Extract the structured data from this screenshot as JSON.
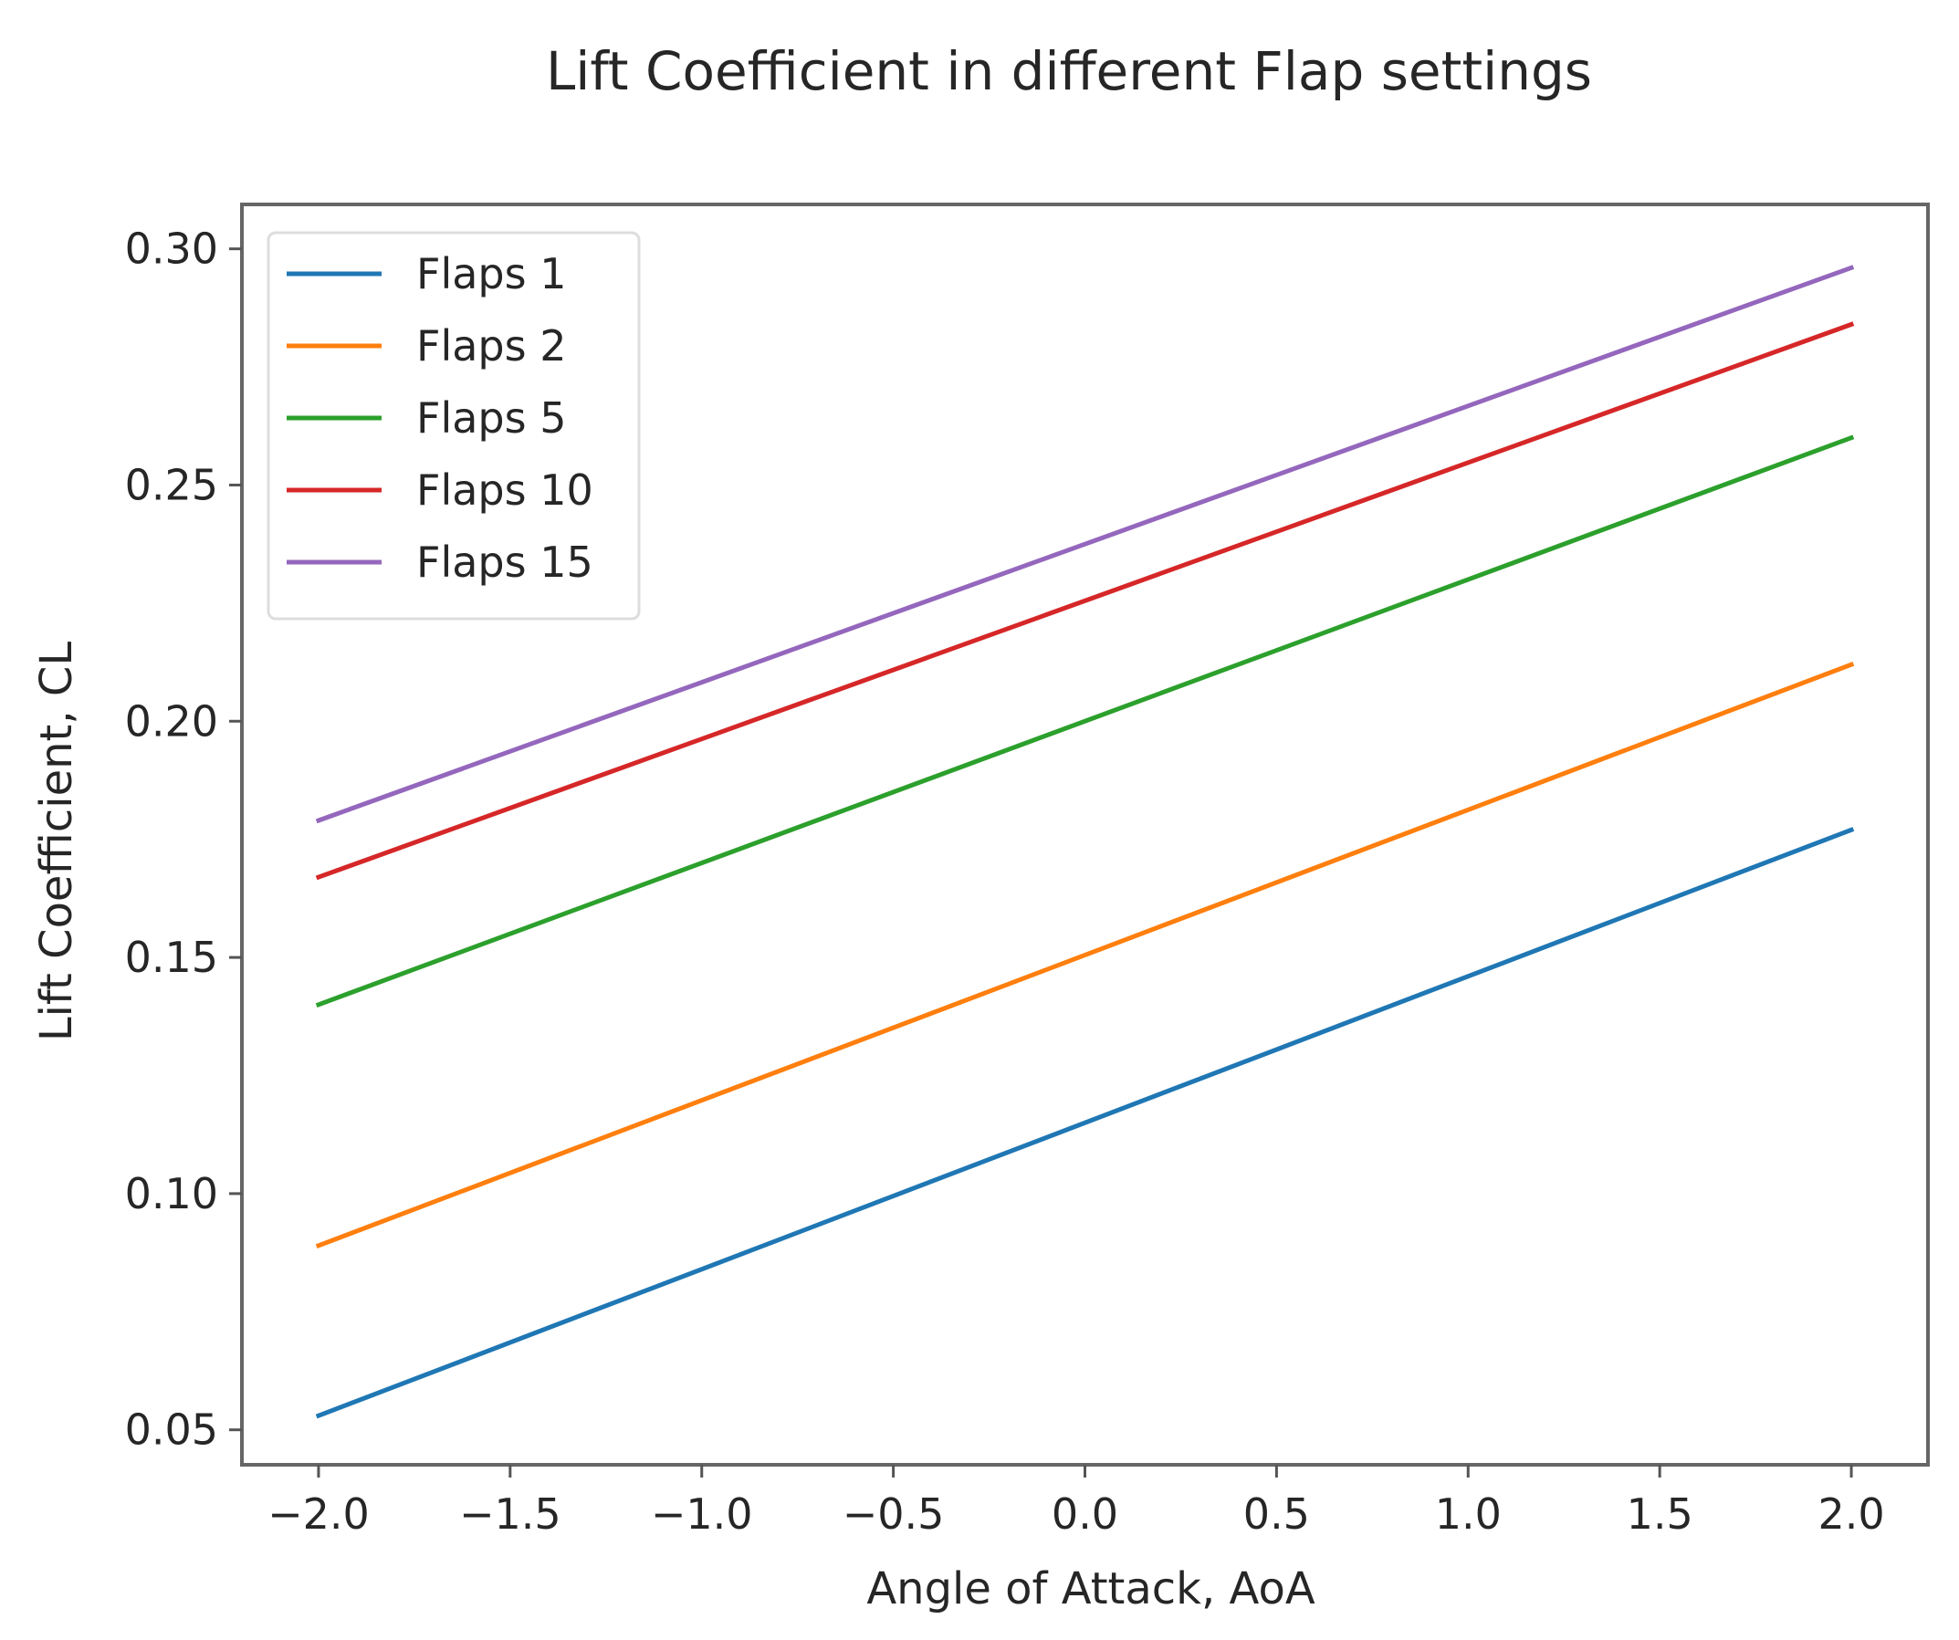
{
  "chart_data": {
    "type": "line",
    "title": "Lift Coefficient in different Flap settings",
    "xlabel": "Angle of Attack, AoA",
    "ylabel": "Lift Coefficient, CL",
    "xlim": [
      -2.2,
      2.2
    ],
    "ylim": [
      0.0426,
      0.3094
    ],
    "xticks": [
      -2.0,
      -1.5,
      -1.0,
      -0.5,
      0.0,
      0.5,
      1.0,
      1.5,
      2.0
    ],
    "xtick_labels": [
      "−2.0",
      "−1.5",
      "−1.0",
      "−0.5",
      "0.0",
      "0.5",
      "1.0",
      "1.5",
      "2.0"
    ],
    "yticks": [
      0.05,
      0.1,
      0.15,
      0.2,
      0.25,
      0.3
    ],
    "ytick_labels": [
      "0.05",
      "0.10",
      "0.15",
      "0.20",
      "0.25",
      "0.30"
    ],
    "grid": false,
    "legend_position": "top-left",
    "x": [
      -2.0,
      2.0
    ],
    "series": [
      {
        "name": "Flaps 1",
        "color": "#1f77b4",
        "values": [
          0.053,
          0.177
        ]
      },
      {
        "name": "Flaps 2",
        "color": "#ff7f0e",
        "values": [
          0.089,
          0.212
        ]
      },
      {
        "name": "Flaps 5",
        "color": "#2ca02c",
        "values": [
          0.14,
          0.26
        ]
      },
      {
        "name": "Flaps 10",
        "color": "#d62728",
        "values": [
          0.167,
          0.284
        ]
      },
      {
        "name": "Flaps 15",
        "color": "#9467bd",
        "values": [
          0.179,
          0.296
        ]
      }
    ]
  }
}
